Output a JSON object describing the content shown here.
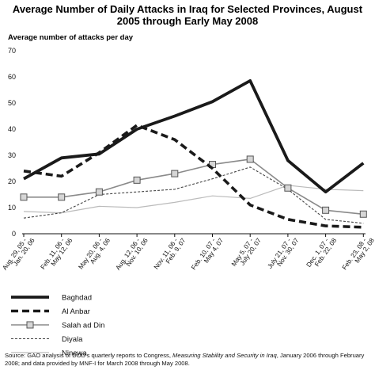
{
  "chart_data": {
    "type": "line",
    "title_lines": [
      "Average Number of Daily Attacks in Iraq for Selected Provinces, August",
      "2005 through Early May 2008"
    ],
    "ylabel": "Average number of attacks per day",
    "ylim": [
      0,
      70
    ],
    "yticks": [
      0,
      10,
      20,
      30,
      40,
      50,
      60,
      70
    ],
    "categories": [
      [
        "Aug. 29, 05 -",
        "Jan. 20, 06"
      ],
      [
        "Feb. 11, 06 -",
        "May 12, 06"
      ],
      [
        "May 20, 06 -",
        "Aug. 4, 06"
      ],
      [
        "Aug. 12, 06 -",
        "Nov. 10, 06"
      ],
      [
        "Nov. 11, 06 -",
        "Feb. 9, 07"
      ],
      [
        "Feb. 10, 07 -",
        "May 4, 07"
      ],
      [
        "May 5, 07 -",
        "July 20, 07"
      ],
      [
        "July 21, 07 -",
        "Nov. 30, 07"
      ],
      [
        "Dec. 1, 07 -",
        "Feb. 22, 08"
      ],
      [
        "Feb. 23, 08 -",
        "May 2, 08"
      ]
    ],
    "x": [
      0,
      1,
      2,
      3,
      4,
      5,
      6,
      7,
      8,
      9
    ],
    "series": [
      {
        "name": "Baghdad",
        "style": "thick-solid",
        "color": "#1a1a1a",
        "x": [
          0,
          1,
          2,
          3,
          4,
          5,
          6,
          7,
          8,
          9
        ],
        "values": [
          21,
          29,
          30.5,
          40,
          45,
          50.5,
          58.5,
          28,
          16,
          27
        ]
      },
      {
        "name": "Al Anbar",
        "style": "thick-dashed",
        "color": "#1a1a1a",
        "x": [
          0,
          1,
          2,
          3,
          4,
          5,
          6,
          7,
          8,
          9
        ],
        "values": [
          24,
          22,
          31,
          41.5,
          36,
          25,
          11,
          5.5,
          3,
          2.5
        ]
      },
      {
        "name": "Salah ad Din",
        "style": "solid-square-markers",
        "color": "#8a8a8a",
        "x": [
          0,
          1,
          2,
          3,
          4,
          5,
          6,
          7,
          8,
          9
        ],
        "values": [
          14,
          14,
          16,
          20.5,
          23,
          26.5,
          28.5,
          17.5,
          9,
          7.5
        ]
      },
      {
        "name": "Diyala",
        "style": "thin-dashed",
        "color": "#444444",
        "x": [
          0,
          1,
          2,
          3,
          4,
          5,
          6,
          7,
          8,
          9
        ],
        "values": [
          6,
          8,
          15,
          16,
          17,
          21,
          25.5,
          17,
          5.5,
          4
        ]
      },
      {
        "name": "Ninewa",
        "style": "thin-light",
        "color": "#bbbbbb",
        "x": [
          0,
          1,
          2,
          3,
          4,
          5,
          6,
          7,
          8,
          9
        ],
        "values": [
          8.5,
          8,
          10.5,
          10,
          12,
          14.5,
          13.5,
          18.5,
          17,
          16.5
        ]
      }
    ],
    "grid": false,
    "legend_position": "bottom-left"
  },
  "source_note": {
    "prefix": "Source: GAO analysis of DOD's quarterly reports to Congress, ",
    "italic": "Measuring Stability and Security in Iraq",
    "suffix": ", January 2006 through February 2008; and data provided by MNF-I for March 2008 through May 2008."
  }
}
